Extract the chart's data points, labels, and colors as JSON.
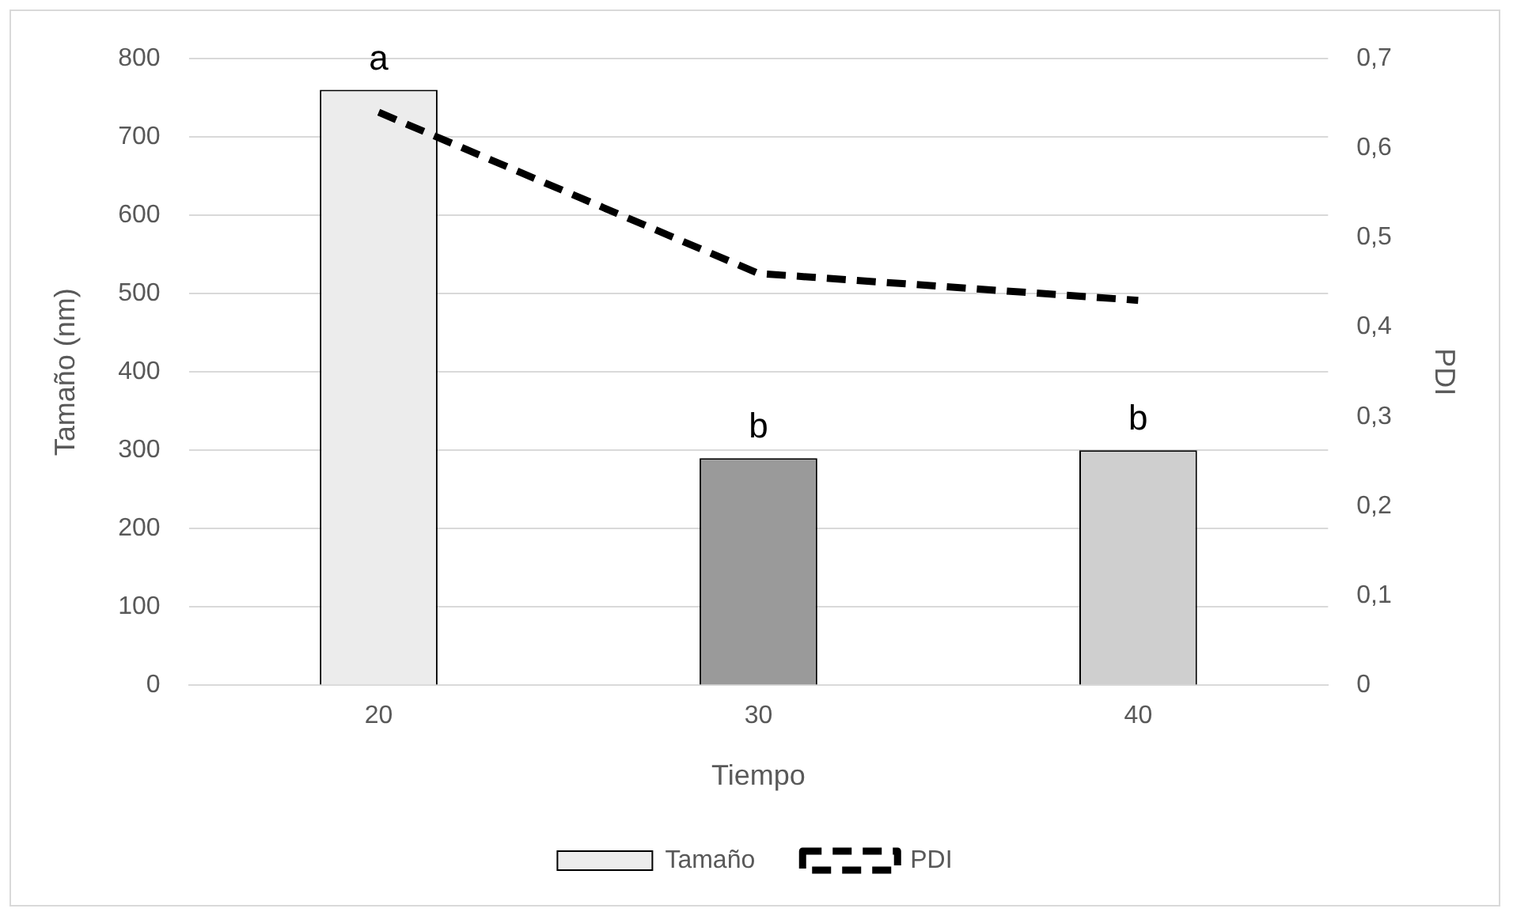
{
  "chart_data": {
    "type": "bar",
    "xlabel": "Tiempo",
    "ylabel": "Tamaño (nm)",
    "y2label": "PDI",
    "categories": [
      "20",
      "30",
      "40"
    ],
    "series": [
      {
        "name": "Tamaño",
        "colors": [
          "#ececec",
          "#9a9a9a",
          "#cfcfcf"
        ],
        "values": [
          760,
          290,
          300
        ]
      },
      {
        "name": "PDI",
        "type": "line",
        "axis": "y2",
        "color": "#000000",
        "line_style": "dashed",
        "values": [
          0.64,
          0.46,
          0.43
        ]
      }
    ],
    "ylim": [
      0,
      800
    ],
    "yticks": [
      0,
      100,
      200,
      300,
      400,
      500,
      600,
      700,
      800
    ],
    "y2lim": [
      0,
      0.7
    ],
    "y2ticks": [
      {
        "value": 0,
        "label": "0"
      },
      {
        "value": 0.1,
        "label": "0,1"
      },
      {
        "value": 0.2,
        "label": "0,2"
      },
      {
        "value": 0.3,
        "label": "0,3"
      },
      {
        "value": 0.4,
        "label": "0,4"
      },
      {
        "value": 0.5,
        "label": "0,5"
      },
      {
        "value": 0.6,
        "label": "0,6"
      },
      {
        "value": 0.7,
        "label": "0,7"
      }
    ],
    "annotations": [
      {
        "text": "a",
        "x": "20",
        "y": 760
      },
      {
        "text": "b",
        "x": "30",
        "y": 290
      },
      {
        "text": "b",
        "x": "40",
        "y": 300
      }
    ],
    "grid": "y",
    "legend": "bottom",
    "marker": "none"
  }
}
